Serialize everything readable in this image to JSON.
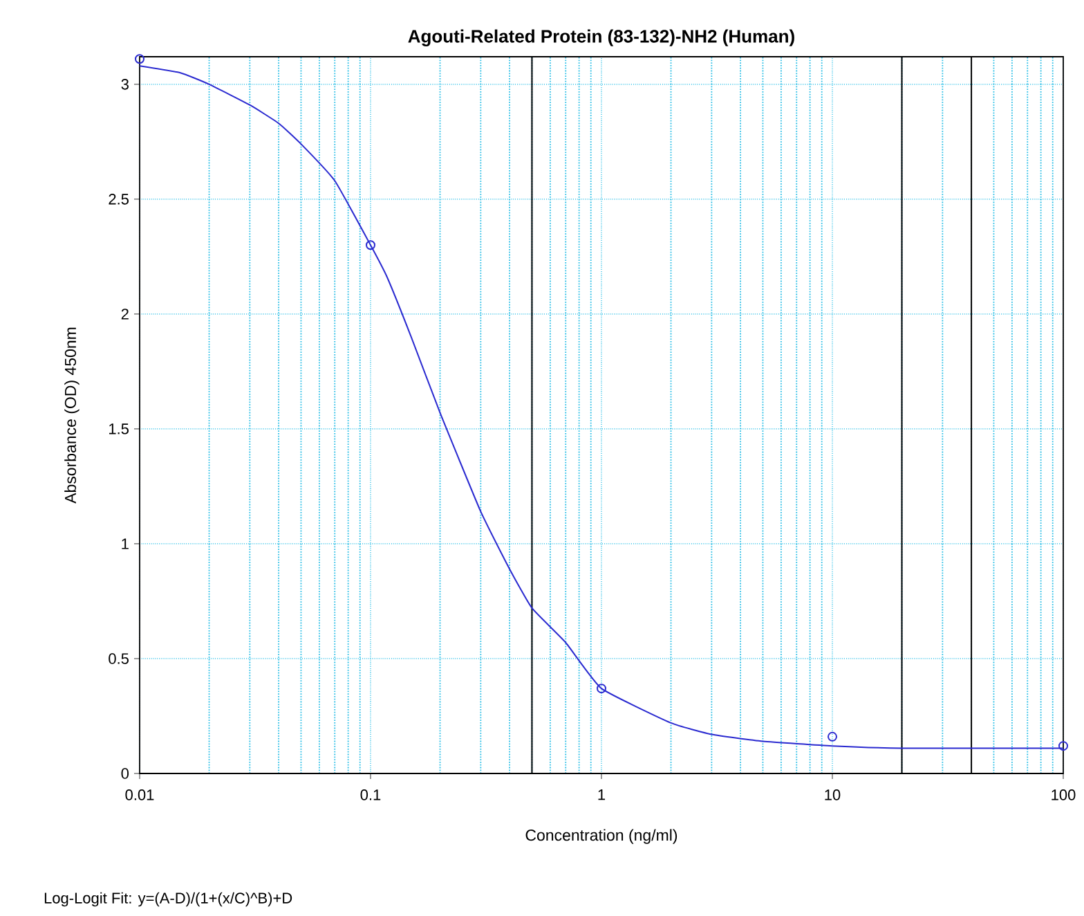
{
  "chart_data": {
    "type": "scatter",
    "title": "Agouti-Related Protein (83-132)-NH2 (Human)",
    "xlabel": "Concentration (ng/ml)",
    "ylabel": "Absorbance (OD) 450nm",
    "log": "x",
    "grid": true,
    "xlim": [
      0.01,
      100
    ],
    "ylim": [
      0,
      3.12
    ],
    "xticks": [
      0.01,
      0.1,
      1,
      10,
      100
    ],
    "yticks": [
      0,
      0.5,
      1,
      1.5,
      2,
      2.5,
      3
    ],
    "series": [
      {
        "color": "#2a2ad0",
        "marker": "circle",
        "x": [
          0.01,
          0.1,
          1,
          10,
          100
        ],
        "values": [
          3.11,
          2.3,
          0.37,
          0.16,
          0.12
        ]
      },
      {
        "type": "line",
        "color": "#2a2ad0",
        "line_style": "solid",
        "x": [
          0.01,
          0.015,
          0.02,
          0.03,
          0.04,
          0.05,
          0.07,
          0.1,
          0.118,
          0.15,
          0.2,
          0.3,
          0.4,
          0.5,
          0.7,
          1,
          2,
          3,
          5,
          10,
          20,
          100
        ],
        "values": [
          3.08,
          3.05,
          3.0,
          2.91,
          2.83,
          2.74,
          2.58,
          2.3,
          2.16,
          1.9,
          1.57,
          1.14,
          0.89,
          0.72,
          0.57,
          0.37,
          0.22,
          0.17,
          0.14,
          0.12,
          0.11,
          0.11
        ]
      }
    ],
    "ref_lines": [
      {
        "axis": "x",
        "value": 0.5,
        "color": "#000000"
      },
      {
        "axis": "x",
        "value": 20,
        "color": "#000000"
      },
      {
        "axis": "x",
        "value": 40,
        "color": "#000000"
      }
    ],
    "annotations": [
      "Log-Logit Fit: y=(A-D)/(1+(x/C)^B)+D"
    ]
  }
}
